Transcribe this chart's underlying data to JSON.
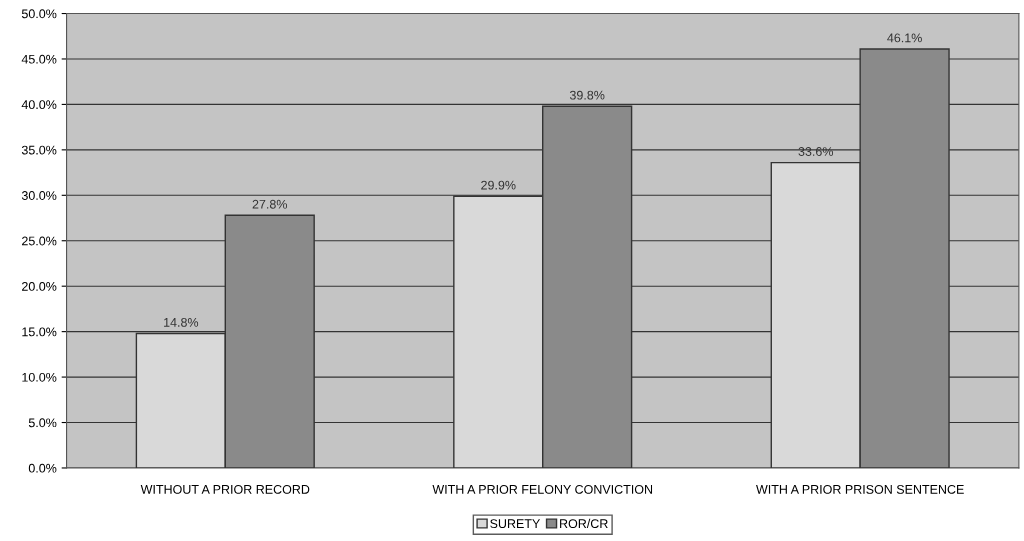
{
  "chart_data": {
    "type": "bar",
    "categories": [
      "WITHOUT A PRIOR RECORD",
      "WITH A PRIOR FELONY CONVICTION",
      "WITH A PRIOR PRISON SENTENCE"
    ],
    "series": [
      {
        "name": "SURETY",
        "color": "#d9d9d9",
        "values": [
          14.8,
          29.9,
          33.6
        ],
        "value_labels": [
          "14.8%",
          "29.9%",
          "33.6%"
        ]
      },
      {
        "name": "ROR/CR",
        "color": "#8a8a8a",
        "values": [
          27.8,
          39.8,
          46.1
        ],
        "value_labels": [
          "27.8%",
          "39.8%",
          "46.1%"
        ]
      }
    ],
    "ylim": [
      0,
      50
    ],
    "yticks": [
      {
        "value": 0,
        "label": "0.0%"
      },
      {
        "value": 5,
        "label": "5.0%"
      },
      {
        "value": 10,
        "label": "10.0%"
      },
      {
        "value": 15,
        "label": "15.0%"
      },
      {
        "value": 20,
        "label": "20.0%"
      },
      {
        "value": 25,
        "label": "25.0%"
      },
      {
        "value": 30,
        "label": "30.0%"
      },
      {
        "value": 35,
        "label": "35.0%"
      },
      {
        "value": 40,
        "label": "40.0%"
      },
      {
        "value": 45,
        "label": "45.0%"
      },
      {
        "value": 50,
        "label": "50.0%"
      }
    ],
    "grid": "y",
    "legend": "bottom"
  }
}
